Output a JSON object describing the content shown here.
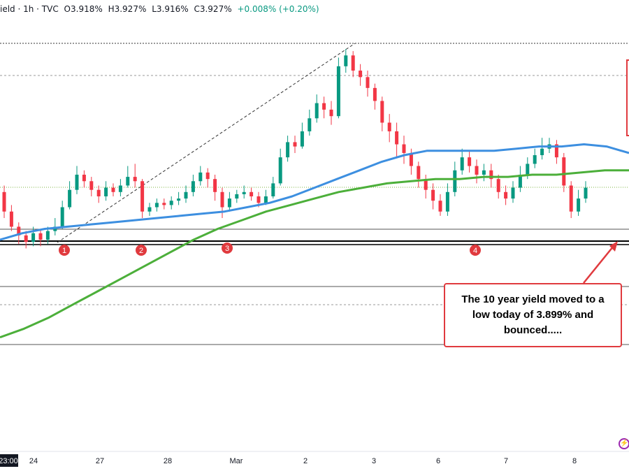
{
  "header": {
    "symbol_fragment": "ield · 1h · TVC",
    "open": "O3.918%",
    "high": "H3.927%",
    "low": "L3.916%",
    "close": "C3.927%",
    "change": "+0.008% (+0.20%)"
  },
  "callout": {
    "text": "The 10 year yield moved to a low today of 3.899% and bounced.....",
    "border_color": "#e03a3e"
  },
  "colors": {
    "up": "#089981",
    "down": "#f23645",
    "ma_blue": "#3d8fe0",
    "ma_green": "#4caf3a",
    "marker": "#e03a3e"
  },
  "chart_data": {
    "type": "candlestick",
    "x_tick_labels": [
      "23:00",
      "24",
      "27",
      "28",
      "Mar",
      "2",
      "3",
      "6",
      "7",
      "8"
    ],
    "markers": [
      "1",
      "2",
      "3",
      "4"
    ],
    "support_level": 3.899,
    "low_today": 3.899,
    "blue_ma": [
      3.8,
      3.83,
      3.85,
      3.86,
      3.87,
      3.88,
      3.89,
      3.9,
      3.91,
      3.92,
      3.93,
      3.95,
      3.97,
      4.0,
      4.04,
      4.08,
      4.12,
      4.16,
      4.19,
      4.21,
      4.21,
      4.21,
      4.21,
      4.22,
      4.23,
      4.23,
      4.24,
      4.23,
      4.2
    ],
    "green_ma": [
      3.35,
      3.39,
      3.44,
      3.5,
      3.56,
      3.62,
      3.68,
      3.74,
      3.8,
      3.85,
      3.89,
      3.93,
      3.96,
      3.99,
      4.02,
      4.04,
      4.06,
      4.07,
      4.08,
      4.08,
      4.09,
      4.09,
      4.1,
      4.1,
      4.11,
      4.12,
      4.12
    ],
    "candles": [
      [
        4.02,
        3.93,
        4.05,
        3.9
      ],
      [
        3.93,
        3.86,
        3.96,
        3.84
      ],
      [
        3.86,
        3.82,
        3.88,
        3.78
      ],
      [
        3.82,
        3.79,
        3.84,
        3.76
      ],
      [
        3.79,
        3.83,
        3.86,
        3.77
      ],
      [
        3.83,
        3.8,
        3.85,
        3.77
      ],
      [
        3.8,
        3.84,
        3.86,
        3.78
      ],
      [
        3.84,
        3.86,
        3.9,
        3.82
      ],
      [
        3.86,
        3.95,
        3.98,
        3.85
      ],
      [
        3.95,
        4.03,
        4.07,
        3.94
      ],
      [
        4.03,
        4.1,
        4.14,
        4.01
      ],
      [
        4.1,
        4.07,
        4.12,
        4.04
      ],
      [
        4.07,
        4.03,
        4.09,
        4.0
      ],
      [
        4.03,
        4.0,
        4.05,
        3.97
      ],
      [
        4.0,
        4.04,
        4.07,
        3.98
      ],
      [
        4.04,
        4.02,
        4.06,
        4.0
      ],
      [
        4.02,
        4.05,
        4.08,
        4.0
      ],
      [
        4.05,
        4.09,
        4.14,
        4.04
      ],
      [
        4.09,
        4.07,
        4.15,
        4.04
      ],
      [
        4.07,
        3.93,
        4.08,
        3.9
      ],
      [
        3.93,
        3.95,
        3.97,
        3.91
      ],
      [
        3.95,
        3.97,
        3.99,
        3.93
      ],
      [
        3.97,
        3.96,
        3.99,
        3.94
      ],
      [
        3.96,
        3.98,
        4.0,
        3.94
      ],
      [
        3.98,
        3.99,
        4.02,
        3.96
      ],
      [
        3.99,
        4.02,
        4.05,
        3.97
      ],
      [
        4.02,
        4.07,
        4.1,
        4.0
      ],
      [
        4.07,
        4.11,
        4.14,
        4.05
      ],
      [
        4.11,
        4.08,
        4.13,
        4.04
      ],
      [
        4.08,
        4.02,
        4.1,
        3.98
      ],
      [
        4.02,
        3.95,
        4.04,
        3.9
      ],
      [
        3.95,
        3.99,
        4.02,
        3.93
      ],
      [
        3.99,
        4.01,
        4.03,
        3.97
      ],
      [
        4.01,
        4.02,
        4.05,
        3.99
      ],
      [
        4.02,
        4.0,
        4.04,
        3.98
      ],
      [
        4.0,
        3.97,
        4.02,
        3.95
      ],
      [
        3.97,
        4.0,
        4.03,
        3.96
      ],
      [
        4.0,
        4.06,
        4.09,
        3.99
      ],
      [
        4.06,
        4.18,
        4.22,
        4.05
      ],
      [
        4.18,
        4.25,
        4.28,
        4.16
      ],
      [
        4.25,
        4.23,
        4.28,
        4.2
      ],
      [
        4.23,
        4.3,
        4.34,
        4.22
      ],
      [
        4.3,
        4.36,
        4.4,
        4.28
      ],
      [
        4.36,
        4.43,
        4.47,
        4.34
      ],
      [
        4.43,
        4.4,
        4.46,
        4.36
      ],
      [
        4.4,
        4.37,
        4.44,
        4.33
      ],
      [
        4.37,
        4.6,
        4.64,
        4.36
      ],
      [
        4.6,
        4.65,
        4.68,
        4.57
      ],
      [
        4.65,
        4.58,
        4.67,
        4.55
      ],
      [
        4.58,
        4.55,
        4.61,
        4.51
      ],
      [
        4.55,
        4.5,
        4.58,
        4.46
      ],
      [
        4.5,
        4.44,
        4.52,
        4.4
      ],
      [
        4.44,
        4.34,
        4.46,
        4.3
      ],
      [
        4.34,
        4.3,
        4.38,
        4.25
      ],
      [
        4.3,
        4.24,
        4.34,
        4.18
      ],
      [
        4.24,
        4.2,
        4.28,
        4.15
      ],
      [
        4.2,
        4.14,
        4.22,
        4.1
      ],
      [
        4.14,
        4.08,
        4.16,
        4.04
      ],
      [
        4.08,
        4.03,
        4.1,
        3.99
      ],
      [
        4.03,
        3.98,
        4.06,
        3.94
      ],
      [
        3.98,
        3.93,
        4.01,
        3.91
      ],
      [
        3.93,
        4.02,
        4.06,
        3.91
      ],
      [
        4.02,
        4.12,
        4.16,
        4.0
      ],
      [
        4.12,
        4.18,
        4.22,
        4.1
      ],
      [
        4.18,
        4.14,
        4.21,
        4.11
      ],
      [
        4.14,
        4.1,
        4.17,
        4.06
      ],
      [
        4.1,
        4.12,
        4.15,
        4.07
      ],
      [
        4.12,
        4.08,
        4.15,
        4.04
      ],
      [
        4.08,
        4.02,
        4.1,
        3.99
      ],
      [
        4.02,
        3.99,
        4.05,
        3.96
      ],
      [
        3.99,
        4.04,
        4.07,
        3.97
      ],
      [
        4.04,
        4.1,
        4.14,
        4.02
      ],
      [
        4.1,
        4.15,
        4.18,
        4.08
      ],
      [
        4.15,
        4.19,
        4.22,
        4.13
      ],
      [
        4.19,
        4.22,
        4.27,
        4.17
      ],
      [
        4.22,
        4.24,
        4.27,
        4.2
      ],
      [
        4.24,
        4.18,
        4.26,
        4.15
      ],
      [
        4.18,
        4.05,
        4.2,
        4.02
      ],
      [
        4.05,
        3.93,
        4.07,
        3.9
      ],
      [
        3.93,
        3.99,
        4.03,
        3.91
      ],
      [
        3.99,
        4.04,
        4.07,
        3.97
      ]
    ]
  }
}
